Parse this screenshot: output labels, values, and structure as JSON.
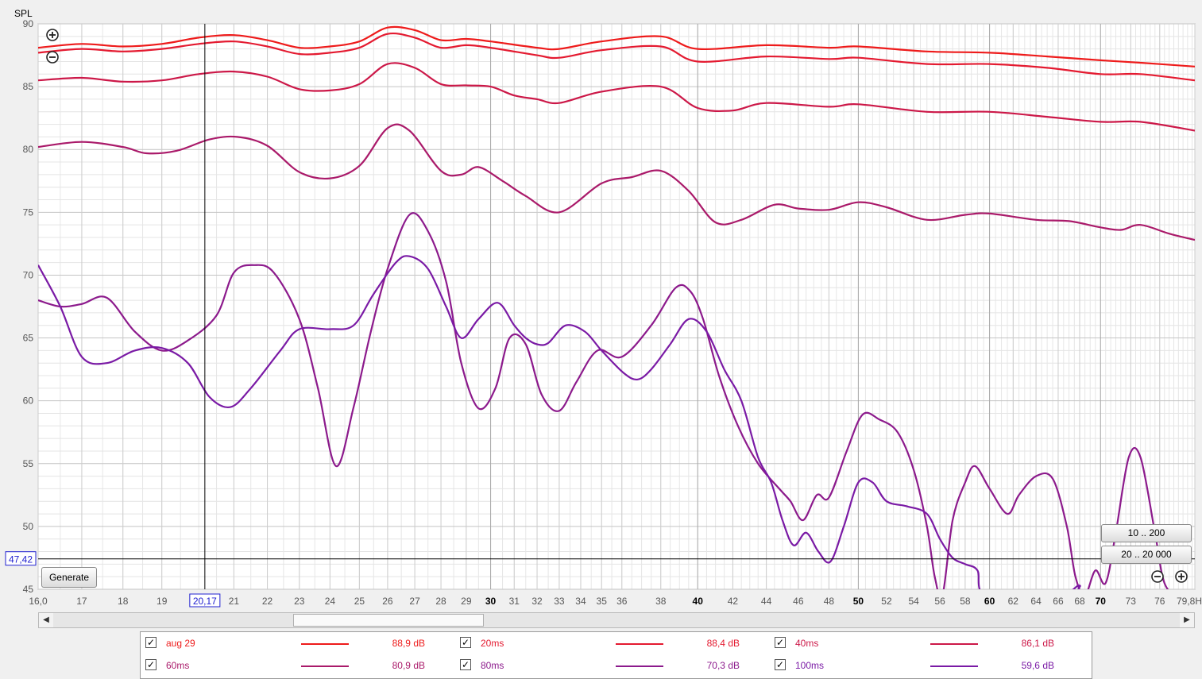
{
  "chart_data": {
    "type": "line",
    "ylabel": "SPL",
    "ylim": [
      45,
      90
    ],
    "xlim": [
      16,
      79.8
    ],
    "xscale": "log",
    "grid": true,
    "y_ticks": [
      "45",
      "50",
      "55",
      "60",
      "65",
      "70",
      "75",
      "80",
      "85",
      "90"
    ],
    "x_ticks": [
      {
        "v": 16,
        "label": "16,0",
        "major": false
      },
      {
        "v": 17,
        "label": "17",
        "major": false
      },
      {
        "v": 18,
        "label": "18",
        "major": false
      },
      {
        "v": 19,
        "label": "19",
        "major": false
      },
      {
        "v": 21,
        "label": "21",
        "major": false
      },
      {
        "v": 22,
        "label": "22",
        "major": false
      },
      {
        "v": 23,
        "label": "23",
        "major": false
      },
      {
        "v": 24,
        "label": "24",
        "major": false
      },
      {
        "v": 25,
        "label": "25",
        "major": false
      },
      {
        "v": 26,
        "label": "26",
        "major": false
      },
      {
        "v": 27,
        "label": "27",
        "major": false
      },
      {
        "v": 28,
        "label": "28",
        "major": false
      },
      {
        "v": 29,
        "label": "29",
        "major": false
      },
      {
        "v": 30,
        "label": "30",
        "major": true
      },
      {
        "v": 31,
        "label": "31",
        "major": false
      },
      {
        "v": 32,
        "label": "32",
        "major": false
      },
      {
        "v": 33,
        "label": "33",
        "major": false
      },
      {
        "v": 34,
        "label": "34",
        "major": false
      },
      {
        "v": 35,
        "label": "35",
        "major": false
      },
      {
        "v": 36,
        "label": "36",
        "major": false
      },
      {
        "v": 38,
        "label": "38",
        "major": false
      },
      {
        "v": 40,
        "label": "40",
        "major": true
      },
      {
        "v": 42,
        "label": "42",
        "major": false
      },
      {
        "v": 44,
        "label": "44",
        "major": false
      },
      {
        "v": 46,
        "label": "46",
        "major": false
      },
      {
        "v": 48,
        "label": "48",
        "major": false
      },
      {
        "v": 50,
        "label": "50",
        "major": true
      },
      {
        "v": 52,
        "label": "52",
        "major": false
      },
      {
        "v": 54,
        "label": "54",
        "major": false
      },
      {
        "v": 56,
        "label": "56",
        "major": false
      },
      {
        "v": 58,
        "label": "58",
        "major": false
      },
      {
        "v": 60,
        "label": "60",
        "major": true
      },
      {
        "v": 62,
        "label": "62",
        "major": false
      },
      {
        "v": 64,
        "label": "64",
        "major": false
      },
      {
        "v": 66,
        "label": "66",
        "major": false
      },
      {
        "v": 68,
        "label": "68",
        "major": false
      },
      {
        "v": 70,
        "label": "70",
        "major": true
      },
      {
        "v": 73,
        "label": "73",
        "major": false
      },
      {
        "v": 76,
        "label": "76",
        "major": false
      },
      {
        "v": 79.8,
        "label": "79,8H",
        "major": false
      }
    ],
    "cursor": {
      "x": 20.17,
      "x_label": "20,17",
      "y": 47.42,
      "y_label": "47,42"
    },
    "series": [
      {
        "name": "aug 29",
        "value_label": "88,9 dB",
        "color": "#ee1b1b",
        "points": [
          [
            16,
            88.1
          ],
          [
            17,
            88.4
          ],
          [
            18,
            88.2
          ],
          [
            19,
            88.4
          ],
          [
            20,
            88.9
          ],
          [
            21,
            89.1
          ],
          [
            22,
            88.7
          ],
          [
            23,
            88.1
          ],
          [
            24,
            88.2
          ],
          [
            25,
            88.6
          ],
          [
            26,
            89.7
          ],
          [
            27,
            89.5
          ],
          [
            28,
            88.7
          ],
          [
            29,
            88.8
          ],
          [
            30,
            88.6
          ],
          [
            32,
            88.1
          ],
          [
            33,
            88.0
          ],
          [
            35,
            88.6
          ],
          [
            38,
            89.0
          ],
          [
            40,
            88.0
          ],
          [
            44,
            88.3
          ],
          [
            48,
            88.1
          ],
          [
            50,
            88.2
          ],
          [
            55,
            87.8
          ],
          [
            60,
            87.7
          ],
          [
            65,
            87.4
          ],
          [
            70,
            87.1
          ],
          [
            74,
            86.9
          ],
          [
            79.8,
            86.6
          ]
        ]
      },
      {
        "name": "20ms",
        "value_label": "88,4 dB",
        "color": "#e41a30",
        "points": [
          [
            16,
            87.7
          ],
          [
            17,
            88.0
          ],
          [
            18,
            87.8
          ],
          [
            19,
            88.0
          ],
          [
            20,
            88.4
          ],
          [
            21,
            88.6
          ],
          [
            22,
            88.2
          ],
          [
            23,
            87.6
          ],
          [
            24,
            87.7
          ],
          [
            25,
            88.1
          ],
          [
            26,
            89.2
          ],
          [
            27,
            88.9
          ],
          [
            28,
            88.1
          ],
          [
            29,
            88.3
          ],
          [
            30,
            88.1
          ],
          [
            32,
            87.5
          ],
          [
            33,
            87.3
          ],
          [
            35,
            87.9
          ],
          [
            38,
            88.2
          ],
          [
            40,
            87.0
          ],
          [
            44,
            87.4
          ],
          [
            48,
            87.2
          ],
          [
            50,
            87.3
          ],
          [
            55,
            86.8
          ],
          [
            60,
            86.8
          ],
          [
            65,
            86.5
          ],
          [
            70,
            86.0
          ],
          [
            74,
            86.0
          ],
          [
            79.8,
            85.5
          ]
        ]
      },
      {
        "name": "40ms",
        "value_label": "86,1 dB",
        "color": "#cc1848",
        "points": [
          [
            16,
            85.5
          ],
          [
            17,
            85.7
          ],
          [
            18,
            85.4
          ],
          [
            19,
            85.5
          ],
          [
            20,
            86.0
          ],
          [
            21,
            86.2
          ],
          [
            22,
            85.8
          ],
          [
            23,
            84.8
          ],
          [
            24,
            84.7
          ],
          [
            25,
            85.2
          ],
          [
            26,
            86.8
          ],
          [
            27,
            86.5
          ],
          [
            28,
            85.2
          ],
          [
            29,
            85.1
          ],
          [
            30,
            85.0
          ],
          [
            31,
            84.3
          ],
          [
            32,
            84.0
          ],
          [
            33,
            83.7
          ],
          [
            35,
            84.6
          ],
          [
            38,
            85.0
          ],
          [
            40,
            83.3
          ],
          [
            42,
            83.1
          ],
          [
            44,
            83.7
          ],
          [
            48,
            83.4
          ],
          [
            50,
            83.6
          ],
          [
            55,
            83.0
          ],
          [
            60,
            83.0
          ],
          [
            65,
            82.6
          ],
          [
            70,
            82.2
          ],
          [
            74,
            82.2
          ],
          [
            79.8,
            81.5
          ]
        ]
      },
      {
        "name": "60ms",
        "value_label": "80,9 dB",
        "color": "#aa1a6a",
        "points": [
          [
            16,
            80.2
          ],
          [
            17,
            80.6
          ],
          [
            18,
            80.2
          ],
          [
            18.6,
            79.7
          ],
          [
            19.4,
            79.9
          ],
          [
            20.3,
            80.8
          ],
          [
            21.1,
            81.0
          ],
          [
            22,
            80.3
          ],
          [
            23,
            78.2
          ],
          [
            24,
            77.7
          ],
          [
            25,
            78.7
          ],
          [
            26,
            81.7
          ],
          [
            26.8,
            81.5
          ],
          [
            28,
            78.3
          ],
          [
            28.8,
            78.0
          ],
          [
            29.5,
            78.6
          ],
          [
            30.5,
            77.5
          ],
          [
            31.5,
            76.3
          ],
          [
            33,
            75.0
          ],
          [
            35,
            77.3
          ],
          [
            36.5,
            77.8
          ],
          [
            38,
            78.3
          ],
          [
            39.5,
            76.7
          ],
          [
            41,
            74.2
          ],
          [
            42.5,
            74.4
          ],
          [
            44.5,
            75.6
          ],
          [
            46,
            75.3
          ],
          [
            48,
            75.2
          ],
          [
            50,
            75.8
          ],
          [
            52,
            75.4
          ],
          [
            55,
            74.4
          ],
          [
            58,
            74.8
          ],
          [
            60,
            74.9
          ],
          [
            64,
            74.4
          ],
          [
            67,
            74.3
          ],
          [
            70,
            73.8
          ],
          [
            72,
            73.6
          ],
          [
            74,
            74.0
          ],
          [
            77,
            73.3
          ],
          [
            79.8,
            72.8
          ]
        ]
      },
      {
        "name": "80ms",
        "value_label": "70,3 dB",
        "color": "#8c1a8c",
        "points": [
          [
            16,
            68.0
          ],
          [
            16.5,
            67.5
          ],
          [
            17,
            67.7
          ],
          [
            17.6,
            68.2
          ],
          [
            18.3,
            65.5
          ],
          [
            19,
            64.0
          ],
          [
            19.7,
            64.8
          ],
          [
            20.5,
            66.8
          ],
          [
            21,
            70.2
          ],
          [
            21.6,
            70.8
          ],
          [
            22.2,
            70.2
          ],
          [
            23,
            66.5
          ],
          [
            23.6,
            61.0
          ],
          [
            24.2,
            54.8
          ],
          [
            24.8,
            59.5
          ],
          [
            25.4,
            65.5
          ],
          [
            26,
            70.5
          ],
          [
            26.8,
            74.8
          ],
          [
            27.5,
            73.5
          ],
          [
            28.2,
            69.5
          ],
          [
            28.8,
            63.0
          ],
          [
            29.5,
            59.4
          ],
          [
            30.2,
            61.0
          ],
          [
            30.8,
            65.0
          ],
          [
            31.5,
            64.5
          ],
          [
            32.2,
            60.5
          ],
          [
            33,
            59.2
          ],
          [
            33.8,
            61.5
          ],
          [
            34.8,
            64.0
          ],
          [
            36,
            63.5
          ],
          [
            37.5,
            66.0
          ],
          [
            38.8,
            69.0
          ],
          [
            39.6,
            68.7
          ],
          [
            40.3,
            66.5
          ],
          [
            41.2,
            62.0
          ],
          [
            42.3,
            58.0
          ],
          [
            43.5,
            55.0
          ],
          [
            44.8,
            53.0
          ],
          [
            45.5,
            52.0
          ],
          [
            46.3,
            50.5
          ],
          [
            47.2,
            52.5
          ],
          [
            48,
            52.3
          ],
          [
            49.2,
            56.0
          ],
          [
            50.3,
            58.9
          ],
          [
            51.5,
            58.5
          ],
          [
            52.8,
            57.5
          ],
          [
            54,
            54.5
          ],
          [
            55,
            50.0
          ],
          [
            55.6,
            46.0
          ],
          [
            56.2,
            44.5
          ],
          [
            57,
            50.5
          ],
          [
            58,
            53.5
          ],
          [
            58.8,
            54.8
          ],
          [
            60,
            53.0
          ],
          [
            61.5,
            51.0
          ],
          [
            62.5,
            52.5
          ],
          [
            64,
            54.0
          ],
          [
            65.5,
            53.8
          ],
          [
            66.8,
            50.0
          ],
          [
            67.6,
            46.0
          ],
          [
            68.5,
            44.5
          ],
          [
            69.5,
            46.5
          ],
          [
            70.5,
            45.5
          ],
          [
            71.5,
            49.5
          ],
          [
            72.8,
            55.5
          ],
          [
            74,
            55.5
          ],
          [
            75.5,
            49.5
          ],
          [
            76.5,
            45.5
          ],
          [
            78,
            44.5
          ],
          [
            79.8,
            44.5
          ]
        ]
      },
      {
        "name": "100ms",
        "value_label": "59,6 dB",
        "color": "#7a1aa5",
        "points": [
          [
            16,
            70.8
          ],
          [
            16.5,
            67.5
          ],
          [
            17,
            63.5
          ],
          [
            17.6,
            63.0
          ],
          [
            18.3,
            64.0
          ],
          [
            19,
            64.2
          ],
          [
            19.7,
            63.0
          ],
          [
            20.3,
            60.3
          ],
          [
            20.9,
            59.5
          ],
          [
            21.5,
            61.0
          ],
          [
            22.4,
            64.0
          ],
          [
            23,
            65.7
          ],
          [
            24,
            65.7
          ],
          [
            24.8,
            66.0
          ],
          [
            25.5,
            68.5
          ],
          [
            26.3,
            71.0
          ],
          [
            26.8,
            71.5
          ],
          [
            27.5,
            70.5
          ],
          [
            28.2,
            67.5
          ],
          [
            28.8,
            65.0
          ],
          [
            29.5,
            66.5
          ],
          [
            30.3,
            67.8
          ],
          [
            31,
            66.0
          ],
          [
            31.5,
            65.0
          ],
          [
            32,
            64.5
          ],
          [
            32.5,
            64.6
          ],
          [
            33.3,
            66.0
          ],
          [
            34.2,
            65.5
          ],
          [
            35,
            64.0
          ],
          [
            36.1,
            62.2
          ],
          [
            36.8,
            61.7
          ],
          [
            37.5,
            62.5
          ],
          [
            38.5,
            64.5
          ],
          [
            39.5,
            66.5
          ],
          [
            40.5,
            65.5
          ],
          [
            41.5,
            62.5
          ],
          [
            42.5,
            60.0
          ],
          [
            43.5,
            55.5
          ],
          [
            44.3,
            53.5
          ],
          [
            45,
            50.5
          ],
          [
            45.7,
            48.5
          ],
          [
            46.5,
            49.5
          ],
          [
            47.3,
            48.0
          ],
          [
            48.1,
            47.2
          ],
          [
            49,
            50.0
          ],
          [
            50,
            53.5
          ],
          [
            51,
            53.5
          ],
          [
            52,
            52.0
          ],
          [
            53.5,
            51.6
          ],
          [
            55,
            51.0
          ],
          [
            56,
            49.0
          ],
          [
            57,
            47.5
          ],
          [
            58,
            47.0
          ],
          [
            59,
            46.5
          ],
          [
            59.7,
            44.5
          ],
          [
            65,
            44.5
          ],
          [
            67,
            44.8
          ],
          [
            68,
            45.3
          ],
          [
            68.8,
            44.5
          ],
          [
            79.8,
            44.5
          ]
        ]
      }
    ]
  },
  "buttons": {
    "generate": "Generate",
    "range1": "10 .. 200",
    "range2": "20 .. 20 000"
  },
  "zoom": {
    "in": "⊕",
    "out": "⊖"
  },
  "checkmark": "✓"
}
